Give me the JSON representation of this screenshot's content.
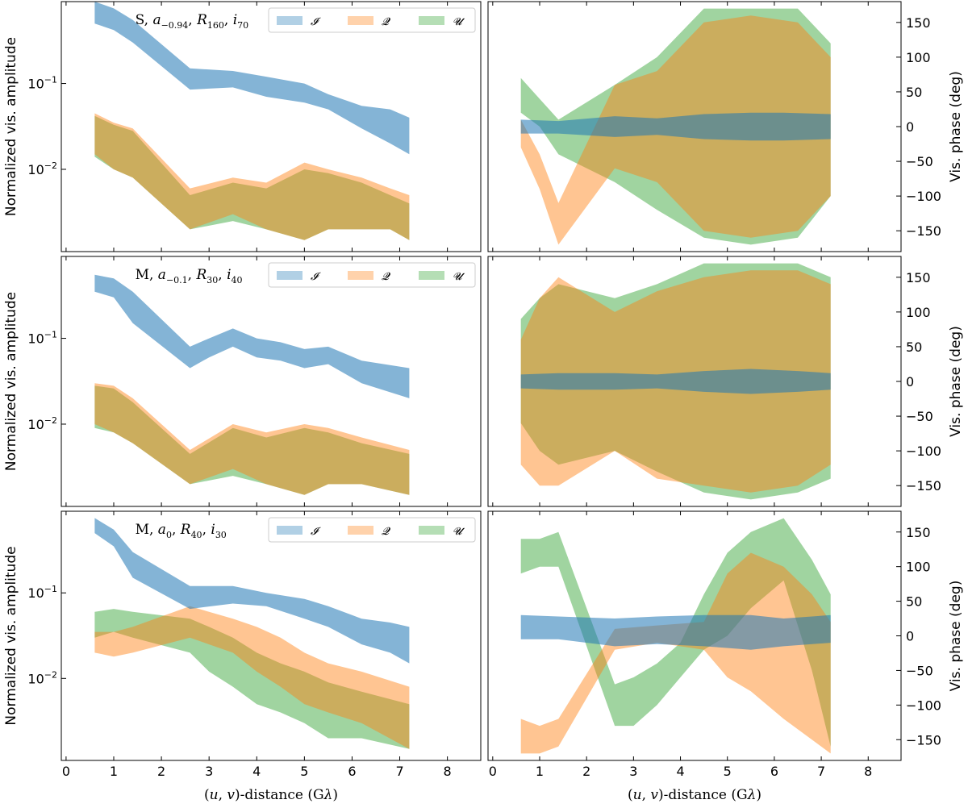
{
  "chart_data": {
    "type": "area",
    "layout": "3 rows x 2 columns",
    "x_axis": {
      "label": "(u, v)-distance (Gλ)",
      "label_parts": [
        "(",
        "u",
        ", ",
        "v",
        ")-distance (G",
        "λ",
        ")"
      ],
      "range": [
        -0.1,
        8.7
      ],
      "ticks": [
        "0",
        "1",
        "2",
        "3",
        "4",
        "5",
        "6",
        "7",
        "8"
      ]
    },
    "amplitude_axis": {
      "label": "Normalized vis. amplitude",
      "scale": "log",
      "range": [
        0.0011,
        0.9
      ],
      "tick_base": "10",
      "ticks": [
        {
          "value": 0.1,
          "exponent": "−1"
        },
        {
          "value": 0.01,
          "exponent": "−2"
        }
      ]
    },
    "phase_axis": {
      "label": "Vis. phase (deg)",
      "range": [
        -180,
        180
      ],
      "ticks": [
        "150",
        "100",
        "50",
        "0",
        "−50",
        "−100",
        "−150"
      ]
    },
    "legend_entries": [
      "𝓘",
      "𝓠",
      "𝓤"
    ],
    "colors": {
      "I": "#1f77b4",
      "Q": "#ff7f0e",
      "U": "#2ca02c"
    },
    "panels": [
      {
        "title": {
          "prefix": "S,",
          "spin": "−0.94",
          "radius": "160",
          "incl": "70"
        },
        "amplitude": {
          "I": [
            [
              0.6,
              0.5,
              0.9
            ],
            [
              1.0,
              0.42,
              0.75
            ],
            [
              1.4,
              0.3,
              0.55
            ],
            [
              2.6,
              0.085,
              0.15
            ],
            [
              3.5,
              0.09,
              0.14
            ],
            [
              4.2,
              0.07,
              0.12
            ],
            [
              5.0,
              0.06,
              0.1
            ],
            [
              5.5,
              0.05,
              0.075
            ],
            [
              6.2,
              0.03,
              0.055
            ],
            [
              6.8,
              0.02,
              0.05
            ],
            [
              7.2,
              0.015,
              0.04
            ]
          ],
          "Q": [
            [
              0.6,
              0.015,
              0.045
            ],
            [
              1.0,
              0.01,
              0.035
            ],
            [
              1.4,
              0.008,
              0.03
            ],
            [
              2.6,
              0.002,
              0.006
            ],
            [
              3.5,
              0.003,
              0.008
            ],
            [
              4.2,
              0.002,
              0.007
            ],
            [
              5.0,
              0.0015,
              0.012
            ],
            [
              5.5,
              0.002,
              0.01
            ],
            [
              6.2,
              0.002,
              0.008
            ],
            [
              6.8,
              0.002,
              0.006
            ],
            [
              7.2,
              0.0015,
              0.005
            ]
          ],
          "U": [
            [
              0.6,
              0.014,
              0.042
            ],
            [
              1.0,
              0.01,
              0.033
            ],
            [
              1.4,
              0.008,
              0.028
            ],
            [
              2.6,
              0.002,
              0.005
            ],
            [
              3.5,
              0.0025,
              0.007
            ],
            [
              4.2,
              0.002,
              0.006
            ],
            [
              5.0,
              0.0015,
              0.01
            ],
            [
              5.5,
              0.002,
              0.009
            ],
            [
              6.2,
              0.002,
              0.007
            ],
            [
              6.8,
              0.002,
              0.005
            ],
            [
              7.2,
              0.0015,
              0.004
            ]
          ]
        },
        "phase": {
          "I": [
            [
              0.6,
              -10,
              10
            ],
            [
              1.4,
              -10,
              8
            ],
            [
              2.6,
              -15,
              15
            ],
            [
              3.5,
              -12,
              12
            ],
            [
              4.5,
              -18,
              18
            ],
            [
              5.5,
              -20,
              20
            ],
            [
              6.2,
              -20,
              20
            ],
            [
              7.2,
              -18,
              18
            ]
          ],
          "Q": [
            [
              0.6,
              -30,
              10
            ],
            [
              1.0,
              -90,
              -40
            ],
            [
              1.4,
              -170,
              -110
            ],
            [
              2.6,
              -60,
              60
            ],
            [
              3.5,
              -80,
              80
            ],
            [
              4.5,
              -150,
              150
            ],
            [
              5.5,
              -160,
              160
            ],
            [
              6.5,
              -150,
              150
            ],
            [
              7.2,
              -100,
              100
            ]
          ],
          "U": [
            [
              0.6,
              20,
              70
            ],
            [
              1.0,
              0,
              40
            ],
            [
              1.4,
              -40,
              10
            ],
            [
              2.6,
              -80,
              60
            ],
            [
              3.5,
              -120,
              100
            ],
            [
              4.5,
              -160,
              170
            ],
            [
              5.5,
              -170,
              170
            ],
            [
              6.5,
              -160,
              170
            ],
            [
              7.2,
              -100,
              120
            ]
          ]
        }
      },
      {
        "title": {
          "prefix": "M,",
          "spin": "−0.1",
          "radius": "30",
          "incl": "40"
        },
        "amplitude": {
          "I": [
            [
              0.6,
              0.35,
              0.55
            ],
            [
              1.0,
              0.3,
              0.5
            ],
            [
              1.4,
              0.15,
              0.35
            ],
            [
              2.6,
              0.045,
              0.08
            ],
            [
              3.0,
              0.06,
              0.1
            ],
            [
              3.5,
              0.08,
              0.13
            ],
            [
              4.0,
              0.06,
              0.1
            ],
            [
              4.5,
              0.055,
              0.09
            ],
            [
              5.0,
              0.045,
              0.075
            ],
            [
              5.5,
              0.05,
              0.08
            ],
            [
              6.2,
              0.03,
              0.055
            ],
            [
              7.2,
              0.02,
              0.045
            ]
          ],
          "Q": [
            [
              0.6,
              0.01,
              0.03
            ],
            [
              1.0,
              0.008,
              0.028
            ],
            [
              1.4,
              0.006,
              0.02
            ],
            [
              2.6,
              0.002,
              0.005
            ],
            [
              3.5,
              0.003,
              0.01
            ],
            [
              4.2,
              0.002,
              0.008
            ],
            [
              5.0,
              0.0015,
              0.01
            ],
            [
              5.5,
              0.002,
              0.009
            ],
            [
              6.2,
              0.002,
              0.007
            ],
            [
              7.2,
              0.0015,
              0.005
            ]
          ],
          "U": [
            [
              0.6,
              0.009,
              0.028
            ],
            [
              1.0,
              0.008,
              0.026
            ],
            [
              1.4,
              0.006,
              0.018
            ],
            [
              2.6,
              0.002,
              0.0045
            ],
            [
              3.5,
              0.0025,
              0.009
            ],
            [
              4.2,
              0.002,
              0.007
            ],
            [
              5.0,
              0.0015,
              0.009
            ],
            [
              5.5,
              0.002,
              0.008
            ],
            [
              6.2,
              0.002,
              0.006
            ],
            [
              7.2,
              0.0015,
              0.0045
            ]
          ]
        },
        "phase": {
          "I": [
            [
              0.6,
              -10,
              10
            ],
            [
              1.4,
              -12,
              12
            ],
            [
              2.6,
              -12,
              12
            ],
            [
              3.5,
              -10,
              10
            ],
            [
              4.5,
              -15,
              15
            ],
            [
              5.5,
              -18,
              18
            ],
            [
              6.5,
              -15,
              15
            ],
            [
              7.2,
              -12,
              12
            ]
          ],
          "Q": [
            [
              0.6,
              -120,
              60
            ],
            [
              1.0,
              -150,
              120
            ],
            [
              1.4,
              -150,
              150
            ],
            [
              2.6,
              -100,
              100
            ],
            [
              3.5,
              -140,
              130
            ],
            [
              4.5,
              -150,
              150
            ],
            [
              5.5,
              -160,
              160
            ],
            [
              6.5,
              -150,
              160
            ],
            [
              7.2,
              -120,
              140
            ]
          ],
          "U": [
            [
              0.6,
              -60,
              90
            ],
            [
              1.0,
              -100,
              120
            ],
            [
              1.4,
              -120,
              140
            ],
            [
              2.6,
              -100,
              120
            ],
            [
              3.5,
              -130,
              140
            ],
            [
              4.5,
              -160,
              170
            ],
            [
              5.5,
              -170,
              170
            ],
            [
              6.5,
              -160,
              170
            ],
            [
              7.2,
              -140,
              150
            ]
          ]
        }
      },
      {
        "title": {
          "prefix": "M,",
          "spin": "0",
          "radius": "40",
          "incl": "30"
        },
        "amplitude": {
          "I": [
            [
              0.6,
              0.5,
              0.75
            ],
            [
              1.0,
              0.35,
              0.55
            ],
            [
              1.4,
              0.15,
              0.3
            ],
            [
              2.6,
              0.065,
              0.12
            ],
            [
              3.5,
              0.075,
              0.12
            ],
            [
              4.2,
              0.07,
              0.1
            ],
            [
              5.0,
              0.05,
              0.085
            ],
            [
              5.5,
              0.04,
              0.07
            ],
            [
              6.2,
              0.025,
              0.05
            ],
            [
              6.8,
              0.02,
              0.045
            ],
            [
              7.2,
              0.015,
              0.04
            ]
          ],
          "Q": [
            [
              0.6,
              0.02,
              0.035
            ],
            [
              1.0,
              0.018,
              0.035
            ],
            [
              1.4,
              0.02,
              0.04
            ],
            [
              2.6,
              0.03,
              0.07
            ],
            [
              3.0,
              0.025,
              0.06
            ],
            [
              3.5,
              0.02,
              0.05
            ],
            [
              4.0,
              0.012,
              0.04
            ],
            [
              4.5,
              0.008,
              0.03
            ],
            [
              5.0,
              0.005,
              0.02
            ],
            [
              5.5,
              0.004,
              0.015
            ],
            [
              6.2,
              0.003,
              0.012
            ],
            [
              7.2,
              0.0015,
              0.008
            ]
          ],
          "U": [
            [
              0.6,
              0.03,
              0.06
            ],
            [
              1.0,
              0.035,
              0.065
            ],
            [
              1.4,
              0.03,
              0.06
            ],
            [
              2.6,
              0.02,
              0.05
            ],
            [
              3.0,
              0.012,
              0.04
            ],
            [
              3.5,
              0.008,
              0.03
            ],
            [
              4.0,
              0.005,
              0.02
            ],
            [
              4.5,
              0.004,
              0.015
            ],
            [
              5.0,
              0.003,
              0.012
            ],
            [
              5.5,
              0.002,
              0.009
            ],
            [
              6.2,
              0.002,
              0.007
            ],
            [
              7.2,
              0.0015,
              0.005
            ]
          ]
        },
        "phase": {
          "I": [
            [
              0.6,
              -5,
              30
            ],
            [
              1.4,
              -5,
              28
            ],
            [
              2.6,
              -15,
              25
            ],
            [
              3.5,
              -12,
              28
            ],
            [
              4.5,
              -15,
              30
            ],
            [
              5.5,
              -20,
              30
            ],
            [
              6.2,
              -15,
              25
            ],
            [
              7.2,
              -10,
              30
            ]
          ],
          "Q": [
            [
              0.6,
              -170,
              -120
            ],
            [
              1.0,
              -170,
              -130
            ],
            [
              1.4,
              -160,
              -120
            ],
            [
              2.6,
              -20,
              10
            ],
            [
              3.5,
              -10,
              15
            ],
            [
              4.5,
              -20,
              20
            ],
            [
              5.0,
              -60,
              90
            ],
            [
              5.5,
              -80,
              120
            ],
            [
              6.2,
              -120,
              100
            ],
            [
              6.8,
              -150,
              60
            ],
            [
              7.2,
              -170,
              20
            ]
          ],
          "U": [
            [
              0.6,
              90,
              140
            ],
            [
              1.0,
              100,
              140
            ],
            [
              1.4,
              100,
              150
            ],
            [
              2.6,
              -130,
              -70
            ],
            [
              3.0,
              -130,
              -60
            ],
            [
              3.5,
              -100,
              -40
            ],
            [
              4.0,
              -60,
              -10
            ],
            [
              4.5,
              -20,
              60
            ],
            [
              5.0,
              0,
              120
            ],
            [
              5.5,
              40,
              150
            ],
            [
              6.2,
              80,
              170
            ],
            [
              6.8,
              -50,
              110
            ],
            [
              7.2,
              -160,
              60
            ]
          ]
        }
      }
    ]
  }
}
